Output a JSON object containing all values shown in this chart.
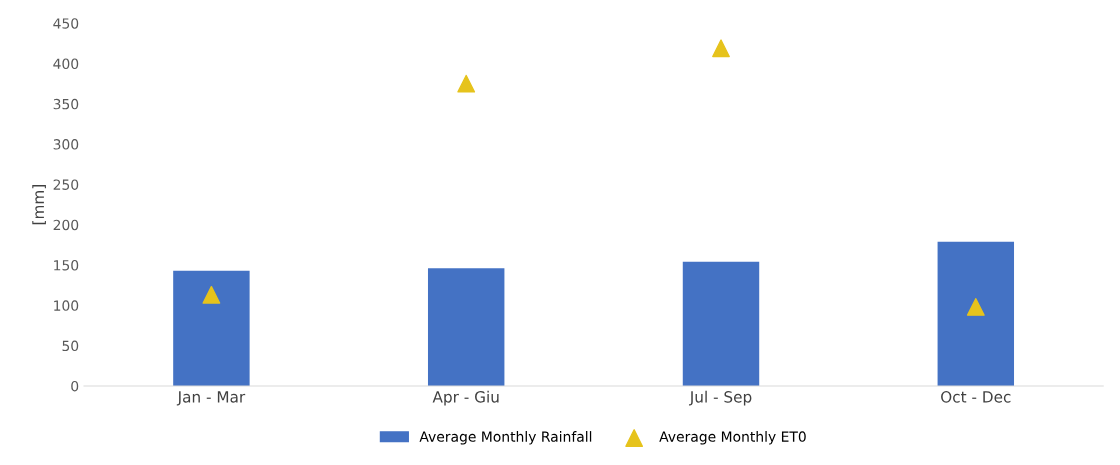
{
  "chart_data": {
    "type": "bar",
    "ylabel": "[mm]",
    "categories": [
      "Jan - Mar",
      "Apr - Giu",
      "Jul - Sep",
      "Oct - Dec"
    ],
    "series": [
      {
        "name": "Average Monthly Rainfall",
        "color": "#4472c4",
        "values": [
          143,
          146,
          154,
          179
        ]
      },
      {
        "name": "Average Monthly ET0",
        "type": "scatter",
        "marker": "triangle",
        "color": "#e6c31c",
        "values": [
          113,
          375,
          419,
          98
        ]
      }
    ],
    "ylim": [
      0,
      450
    ],
    "yticks": [
      0,
      50,
      100,
      150,
      200,
      250,
      300,
      350,
      400,
      450
    ],
    "grid": false,
    "legend": "bottom"
  }
}
